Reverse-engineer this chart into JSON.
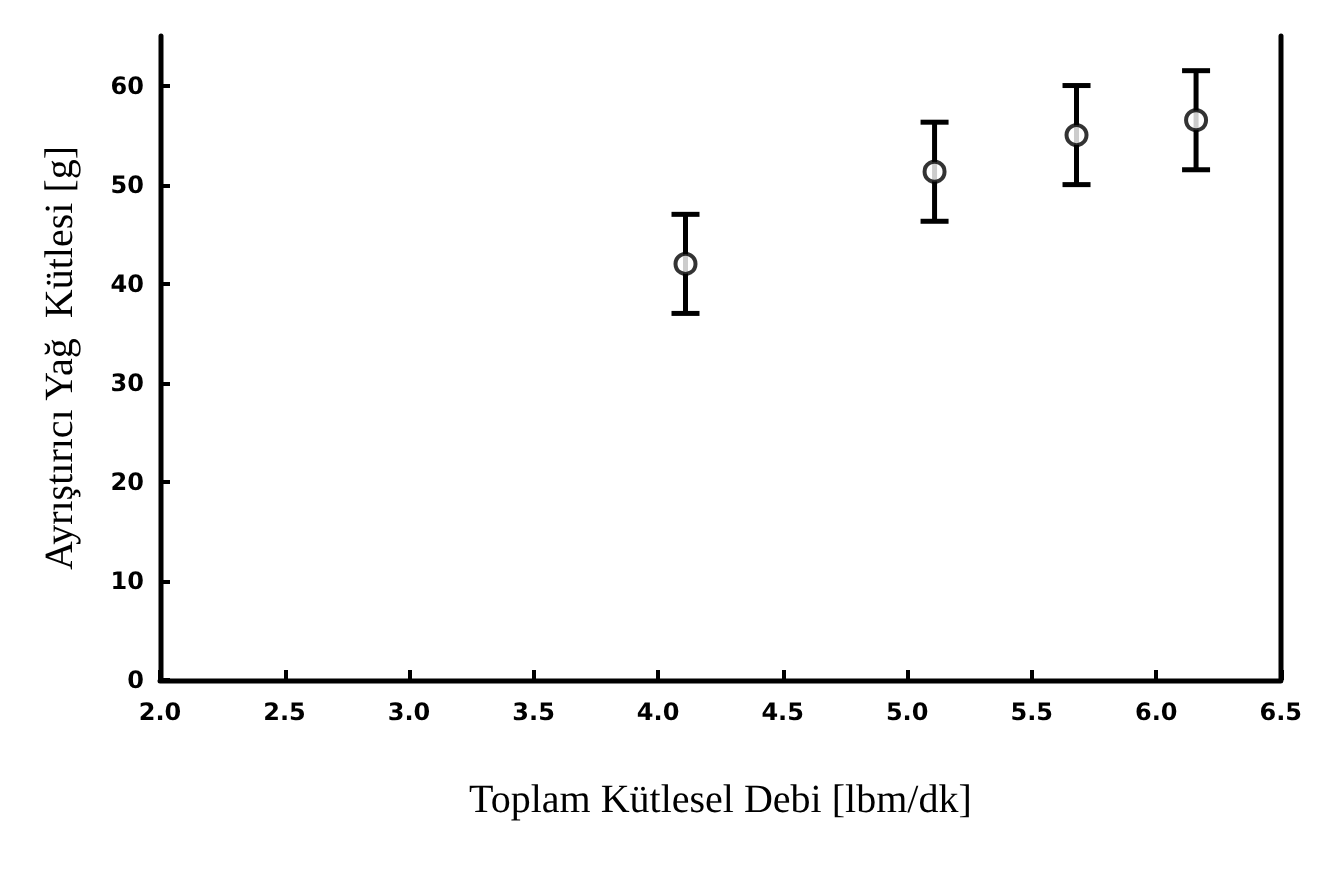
{
  "chart_data": {
    "type": "scatter",
    "xlabel": "Toplam Kütlesel Debi [lbm/dk]",
    "ylabel": "Ayrıştırıcı Yağ  Kütlesi [g]",
    "x": [
      4.11,
      5.11,
      5.68,
      6.16
    ],
    "values": [
      42,
      51.3,
      55,
      56.5
    ],
    "errors": [
      5,
      5,
      5,
      5
    ],
    "color": "#000000",
    "marker": "circle",
    "xlim": [
      2.0,
      6.5
    ],
    "xticks": [
      {
        "value": 2,
        "label": "2.0"
      },
      {
        "value": 2.5,
        "label": "2.5"
      },
      {
        "value": 3,
        "label": "3.0"
      },
      {
        "value": 3.5,
        "label": "3.5"
      },
      {
        "value": 4,
        "label": "4.0"
      },
      {
        "value": 4.5,
        "label": "4.5"
      },
      {
        "value": 5,
        "label": "5.0"
      },
      {
        "value": 5.5,
        "label": "5.5"
      },
      {
        "value": 6,
        "label": "6.0"
      },
      {
        "value": 6.5,
        "label": "6.5"
      }
    ],
    "ylim": [
      0,
      65
    ],
    "yticks": [
      0,
      10,
      20,
      30,
      40,
      50,
      60
    ],
    "grid": false
  }
}
